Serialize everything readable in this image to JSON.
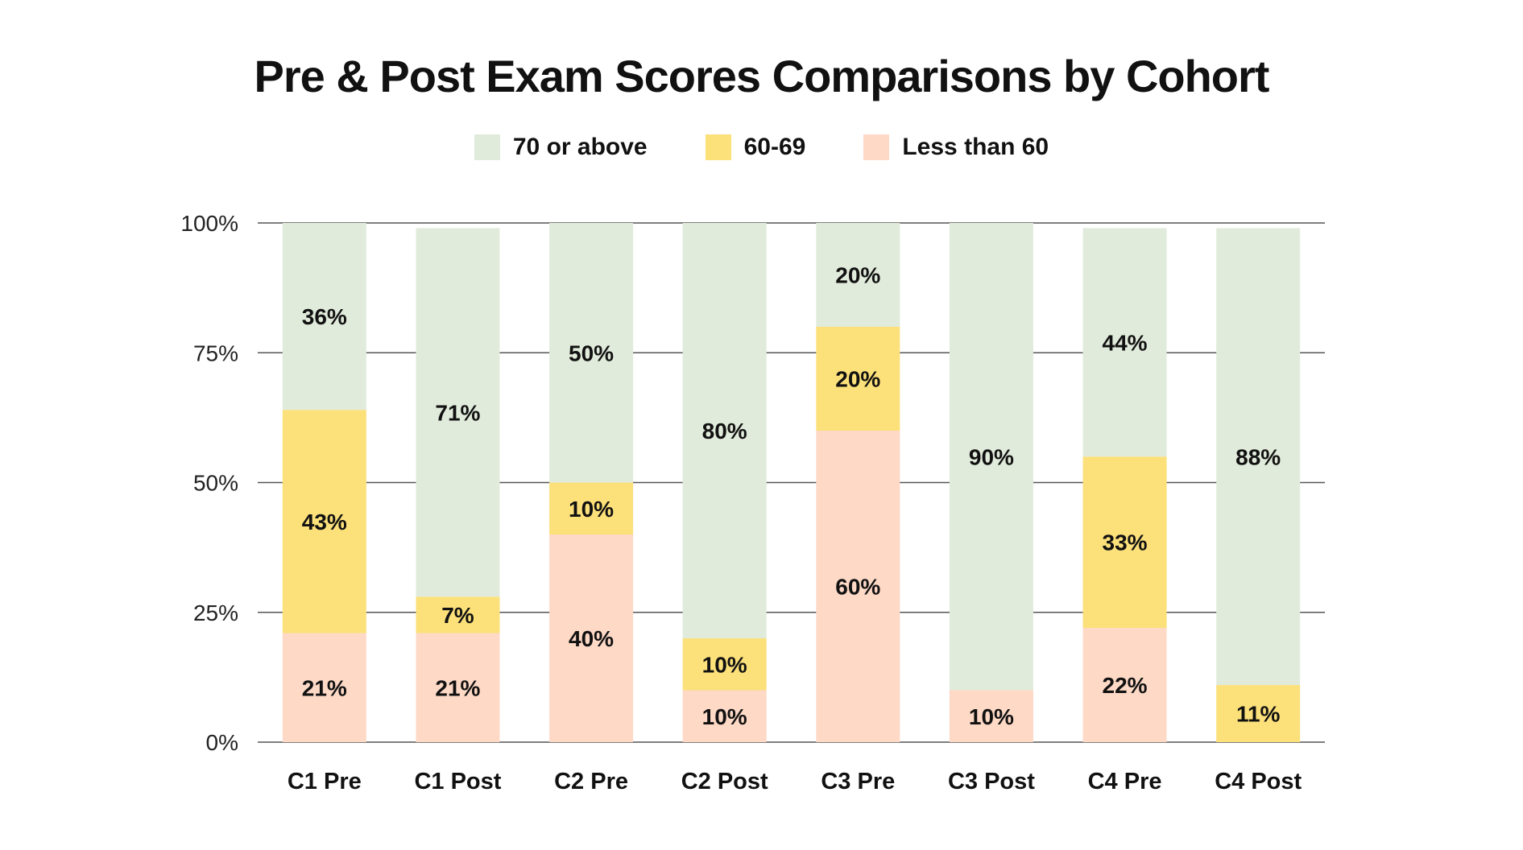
{
  "chart_data": {
    "type": "bar",
    "stacked": true,
    "percent": true,
    "title": "Pre & Post Exam Scores Comparisons by Cohort",
    "categories": [
      "C1 Pre",
      "C1 Post",
      "C2 Pre",
      "C2 Post",
      "C3 Pre",
      "C3 Post",
      "C4 Pre",
      "C4 Post"
    ],
    "series": [
      {
        "name": "Less than 60",
        "color": "#fdd9c6",
        "values": [
          21,
          21,
          40,
          10,
          60,
          10,
          22,
          0
        ],
        "labels": [
          "21%",
          "21%",
          "40%",
          "10%",
          "60%",
          "10%",
          "22%",
          ""
        ]
      },
      {
        "name": "60-69",
        "color": "#fce07a",
        "values": [
          43,
          7,
          10,
          10,
          20,
          0,
          33,
          11
        ],
        "labels": [
          "43%",
          "7%",
          "10%",
          "10%",
          "20%",
          "",
          "33%",
          "11%"
        ]
      },
      {
        "name": "70 or above",
        "color": "#e1ebdb",
        "values": [
          36,
          71,
          50,
          80,
          20,
          90,
          44,
          88
        ],
        "labels": [
          "36%",
          "71%",
          "50%",
          "80%",
          "20%",
          "90%",
          "44%",
          "88%"
        ]
      }
    ],
    "legend_order": [
      "70 or above",
      "60-69",
      "Less than 60"
    ],
    "ylim": [
      0,
      100
    ],
    "yticks": [
      0,
      25,
      50,
      75,
      100
    ],
    "ytick_labels": [
      "0%",
      "25%",
      "50%",
      "75%",
      "100%"
    ],
    "grid": true,
    "legend_position": "top-center"
  }
}
